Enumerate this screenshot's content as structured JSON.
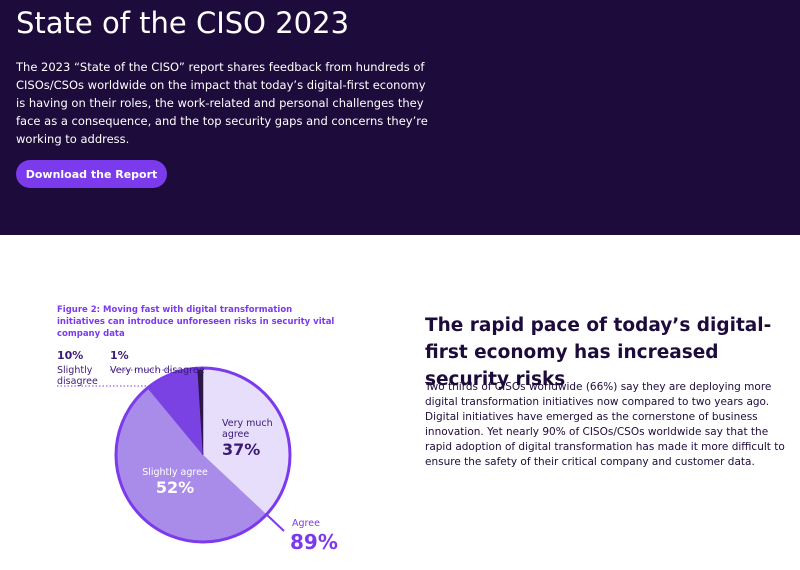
{
  "header": {
    "title": "State of the CISO 2023",
    "description": "The 2023 “State of the CISO” report shares feedback from hundreds of CISOs/CSOs worldwide on the impact that today’s digital-first economy is having on their roles, the work-related and personal challenges they face as a consequence, and the top security gaps and concerns they’re working to address.",
    "button": "Download the Report"
  },
  "figure": {
    "caption": "Figure 2: Moving fast with digital transformation initiatives can introduce unforeseen risks in security vital company data",
    "chart_data": {
      "type": "pie",
      "categories": [
        "Very much agree",
        "Slightly agree",
        "Slightly disagree",
        "Very much disagree"
      ],
      "values": [
        37,
        52,
        10,
        1
      ],
      "value_labels": [
        "37%",
        "52%",
        "10%",
        "1%"
      ],
      "colors": [
        "#e7defb",
        "#a98be9",
        "#7b42e3",
        "#2b1846"
      ],
      "annotation": {
        "label": "Agree",
        "value_label": "89%"
      }
    }
  },
  "article": {
    "heading": "The rapid pace of today’s digital-first economy has increased security risks",
    "body": "Two thirds of CISOs worldwide (66%) say they are deploying more digital transformation initiatives now compared to two years ago. Digital initiatives have emerged as the cornerstone of business innovation. Yet nearly 90% of CISOs/CSOs worldwide say that the rapid adoption of digital transformation has made it more difficult to ensure the safety of their critical company and customer data."
  }
}
